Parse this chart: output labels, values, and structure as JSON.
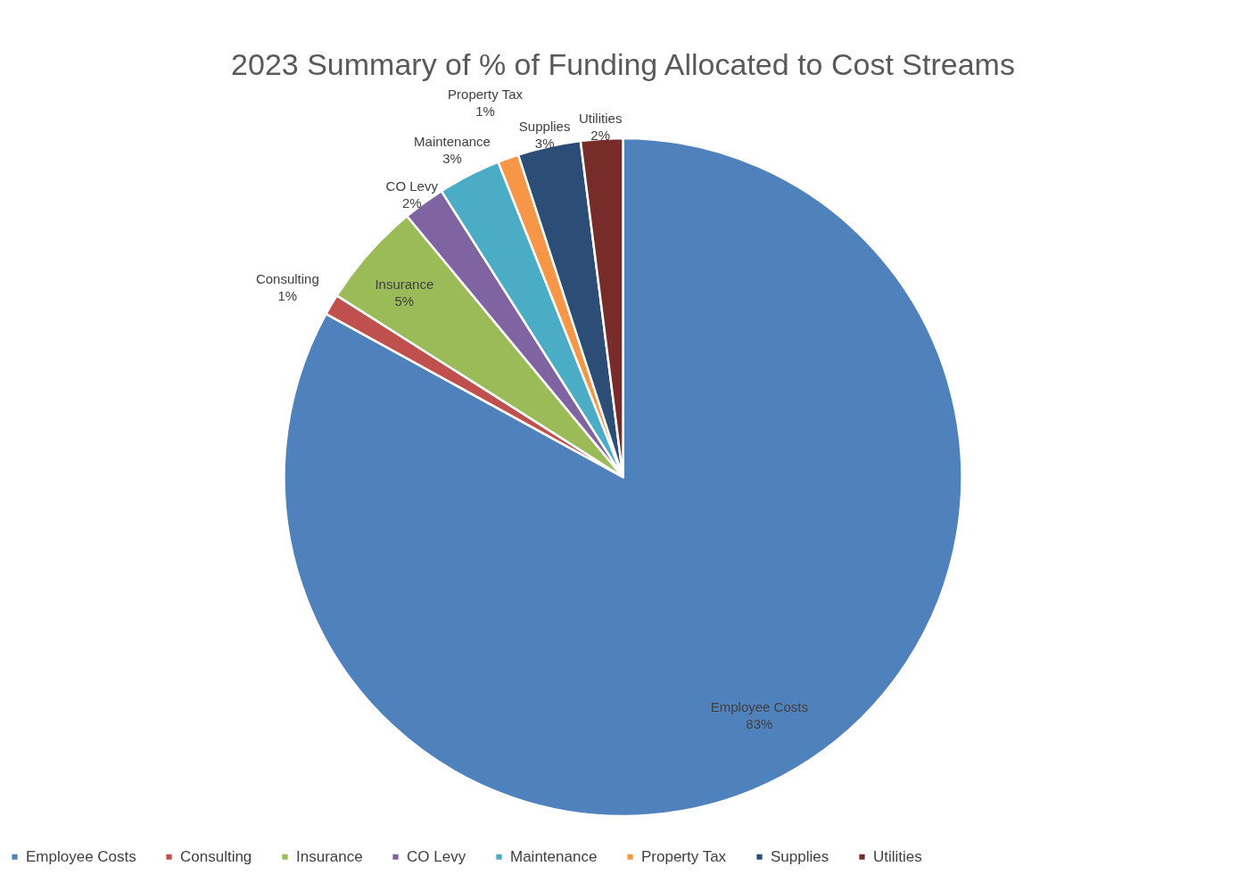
{
  "chart_data": {
    "type": "pie",
    "title": "2023 Summary of % of Funding Allocated to Cost Streams",
    "categories": [
      "Employee Costs",
      "Consulting",
      "Insurance",
      "CO Levy",
      "Maintenance",
      "Property Tax",
      "Supplies",
      "Utilities"
    ],
    "values": [
      83,
      1,
      5,
      2,
      3,
      1,
      3,
      2
    ],
    "value_labels": [
      "83%",
      "1%",
      "5%",
      "2%",
      "3%",
      "1%",
      "3%",
      "2%"
    ],
    "colors": [
      "#4f81bd",
      "#c0504d",
      "#9bbb59",
      "#8064a2",
      "#4bacc6",
      "#f79646",
      "#2c4d75",
      "#772c2a"
    ],
    "legend": "bottom"
  }
}
